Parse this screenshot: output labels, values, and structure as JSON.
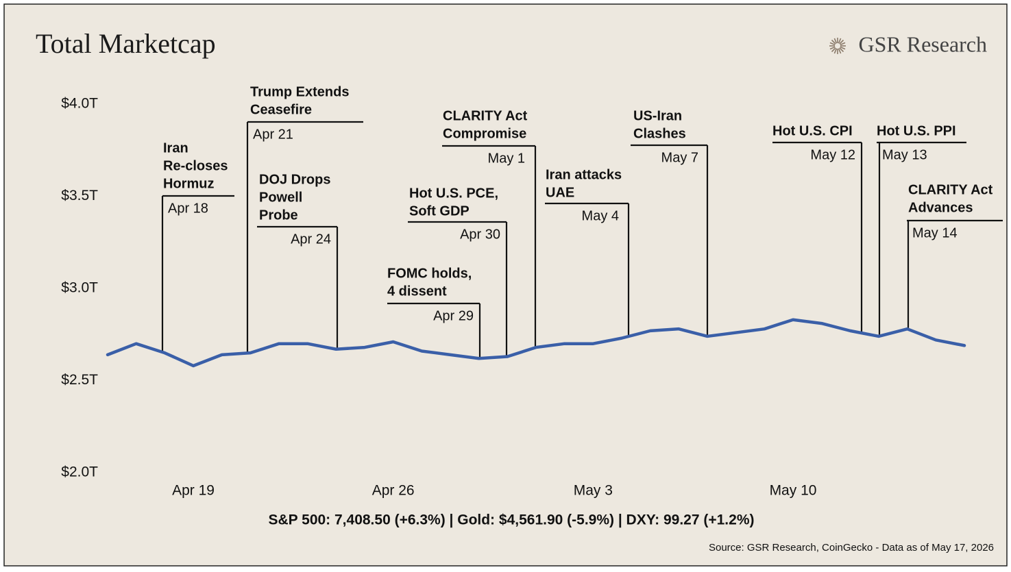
{
  "chart_data": {
    "type": "line",
    "title": "Total Marketcap",
    "brand": "GSR Research",
    "categories": [
      null,
      null,
      null,
      "Apr 19",
      null,
      null,
      null,
      null,
      null,
      null,
      "Apr 26",
      null,
      null,
      null,
      null,
      null,
      null,
      "May 3",
      null,
      null,
      null,
      null,
      null,
      null,
      "May 10",
      null,
      null,
      null,
      null,
      null,
      null
    ],
    "values": [
      2.64,
      2.7,
      2.65,
      2.58,
      2.64,
      2.65,
      2.7,
      2.7,
      2.67,
      2.68,
      2.71,
      2.66,
      2.64,
      2.62,
      2.63,
      2.68,
      2.7,
      2.7,
      2.73,
      2.77,
      2.78,
      2.74,
      2.76,
      2.78,
      2.83,
      2.81,
      2.77,
      2.74,
      2.78,
      2.72,
      2.69
    ],
    "color": "#3a5fa8",
    "ylim": [
      2,
      4
    ],
    "yticks": [
      {
        "value": 2,
        "label": "$2.0T"
      },
      {
        "value": 2.5,
        "label": "$2.5T"
      },
      {
        "value": 3,
        "label": "$3.0T"
      },
      {
        "value": 3.5,
        "label": "$3.5T"
      },
      {
        "value": 4,
        "label": "$4.0T"
      }
    ],
    "grid": false,
    "annotations": [
      {
        "lines": [
          "Iran",
          "Re-closes",
          "Hormuz"
        ],
        "date": "Apr 18"
      },
      {
        "lines": [
          "Trump Extends",
          "Ceasefire"
        ],
        "date": "Apr 21"
      },
      {
        "lines": [
          "DOJ Drops",
          "Powell",
          "Probe"
        ],
        "date": "Apr 24"
      },
      {
        "lines": [
          "FOMC holds,",
          "4 dissent"
        ],
        "date": "Apr 29"
      },
      {
        "lines": [
          "Hot U.S. PCE,",
          "Soft GDP"
        ],
        "date": "Apr 30"
      },
      {
        "lines": [
          "CLARITY Act",
          "Compromise"
        ],
        "date": "May 1"
      },
      {
        "lines": [
          "Iran attacks",
          "UAE"
        ],
        "date": "May 4"
      },
      {
        "lines": [
          "US-Iran",
          "Clashes"
        ],
        "date": "May 7"
      },
      {
        "lines": [
          "Hot U.S. CPI"
        ],
        "date": "May 12"
      },
      {
        "lines": [
          "Hot U.S. PPI"
        ],
        "date": "May 13"
      },
      {
        "lines": [
          "CLARITY Act",
          "Advances"
        ],
        "date": "May 14"
      }
    ],
    "footer": "S&P 500: 7,408.50 (+6.3%) | Gold: $4,561.90 (-5.9%) | DXY: 99.27 (+1.2%)",
    "source": "Source: GSR Research, CoinGecko - Data as of May 17, 2026"
  }
}
